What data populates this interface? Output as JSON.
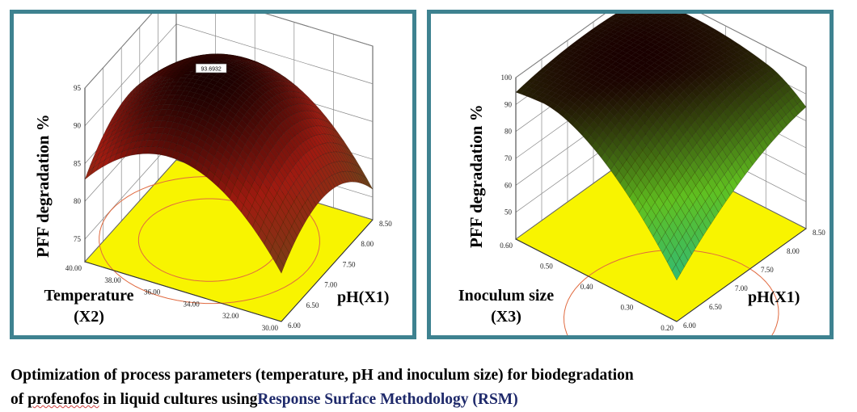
{
  "chart_data": [
    {
      "type": "surface3d",
      "zlabel": "PFF degradation %",
      "xlabel": "pH(X1)",
      "ylabel_lines": [
        "Temperature",
        "(X2)"
      ],
      "x_ticks": [
        "6.00",
        "6.50",
        "7.00",
        "7.50",
        "8.00",
        "8.50"
      ],
      "y_ticks": [
        "30.00",
        "32.00",
        "34.00",
        "36.00",
        "38.00",
        "40.00"
      ],
      "z_ticks": [
        "75",
        "80",
        "85",
        "90",
        "95"
      ],
      "xlim": [
        6.0,
        8.5
      ],
      "ylim": [
        30.0,
        40.0
      ],
      "zlim": [
        72,
        95
      ],
      "peak_label": "93.6932",
      "colors": {
        "floor": "#f8f400",
        "contour": "#e06a40",
        "low": "#6a4a1a",
        "mid": "#a01a10",
        "high": "#1a0000"
      }
    },
    {
      "type": "surface3d",
      "zlabel": "PFF degradation %",
      "xlabel": "pH(X1)",
      "ylabel_lines": [
        "Inoculum size",
        "(X3)"
      ],
      "x_ticks": [
        "6.00",
        "6.50",
        "7.00",
        "7.50",
        "8.00",
        "8.50"
      ],
      "y_ticks": [
        "0.20",
        "0.30",
        "0.40",
        "0.50",
        "0.60"
      ],
      "z_ticks": [
        "50",
        "60",
        "70",
        "80",
        "90",
        "100"
      ],
      "xlim": [
        6.0,
        8.5
      ],
      "ylim": [
        0.2,
        0.6
      ],
      "zlim": [
        40,
        100
      ],
      "colors": {
        "floor": "#f8f400",
        "contour": "#e06a40",
        "low": "#18b8a0",
        "mid": "#60c020",
        "high": "#1a0000"
      }
    }
  ],
  "caption": {
    "line1": "Optimization of process parameters (temperature, pH and inoculum size) for biodegradation",
    "line2_prefix": "of",
    "line2_word": "profenofos",
    "line2_rest": " in liquid cultures using",
    "line2_highlight": "Response Surface Methodology (RSM)"
  }
}
